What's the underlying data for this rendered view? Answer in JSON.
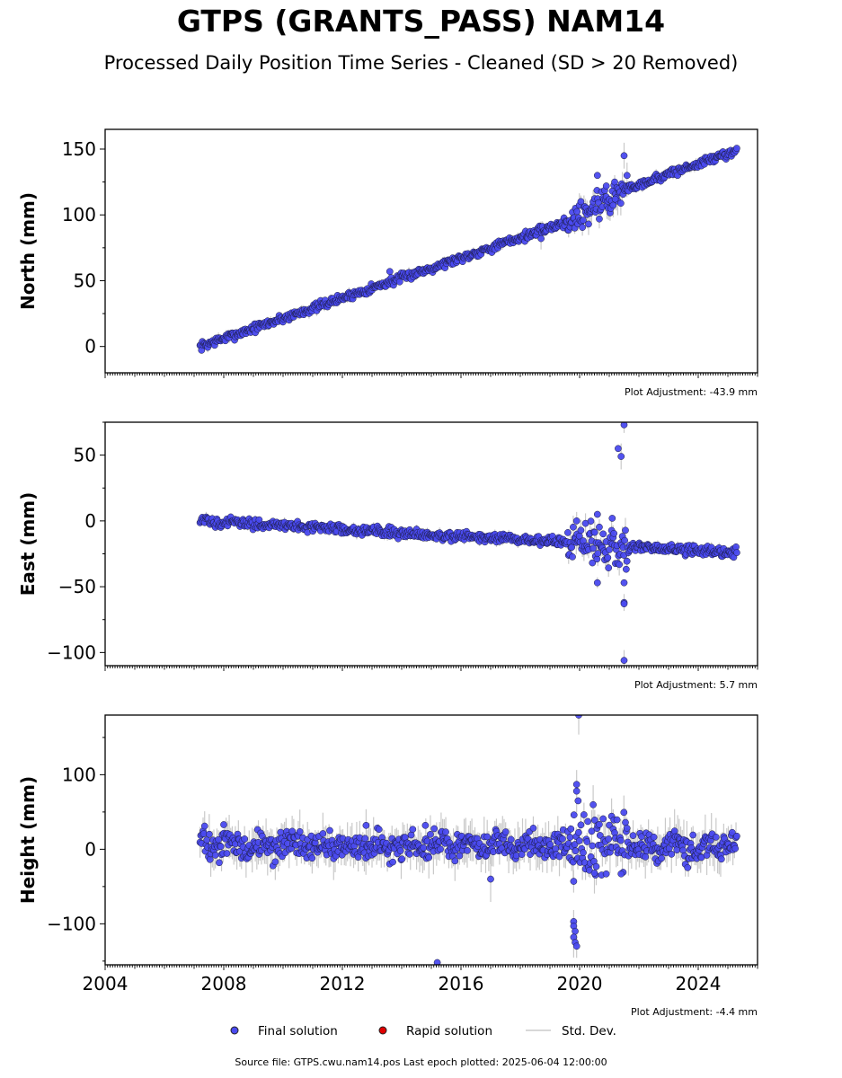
{
  "header": {
    "title": "GTPS (GRANTS_PASS) NAM14",
    "subtitle": "Processed Daily Position Time Series - Cleaned (SD > 20 Removed)"
  },
  "footer": {
    "source": "Source file: GTPS.cwu.nam14.pos  Last epoch plotted: 2025-06-04 12:00:00"
  },
  "legend": {
    "position": "bottom-center",
    "items": [
      {
        "label": "Final solution",
        "color": "#4a4aef"
      },
      {
        "label": "Rapid solution",
        "color": "#e00000"
      },
      {
        "label": "Std. Dev.",
        "color": "#cccccc"
      }
    ]
  },
  "chart_data": [
    {
      "type": "scatter",
      "ylabel": "North (mm)",
      "adjustment": "Plot Adjustment: -43.9 mm",
      "xlim": [
        2004,
        2026
      ],
      "ylim": [
        -20,
        165
      ],
      "yticks": [
        0,
        50,
        100,
        150
      ],
      "xticks": [
        2004,
        2008,
        2012,
        2016,
        2020,
        2024
      ],
      "show_xtick_labels": false,
      "grid": false,
      "series": [
        {
          "color": "#4a4aef",
          "trend": [
            [
              2007.2,
              0
            ],
            [
              2019.6,
              95
            ],
            [
              2021.6,
              120
            ],
            [
              2025.3,
              149
            ]
          ],
          "outliers": [
            [
              2021.5,
              145
            ],
            [
              2020.6,
              130
            ],
            [
              2021.6,
              130
            ],
            [
              2020.9,
              122
            ],
            [
              2018.7,
              82
            ],
            [
              2013.6,
              57
            ],
            [
              2021.2,
              112
            ]
          ]
        }
      ]
    },
    {
      "type": "scatter",
      "ylabel": "East (mm)",
      "adjustment": "Plot Adjustment: 5.7 mm",
      "xlim": [
        2004,
        2026
      ],
      "ylim": [
        -110,
        75
      ],
      "yticks": [
        -100,
        -50,
        0,
        50
      ],
      "xticks": [
        2004,
        2008,
        2012,
        2016,
        2020,
        2024
      ],
      "show_xtick_labels": false,
      "grid": false,
      "series": [
        {
          "color": "#4a4aef",
          "trend": [
            [
              2007.2,
              0
            ],
            [
              2012,
              -6
            ],
            [
              2016,
              -12
            ],
            [
              2019.6,
              -16
            ],
            [
              2021.6,
              -20
            ],
            [
              2025.3,
              -24
            ]
          ],
          "outliers": [
            [
              2021.5,
              73
            ],
            [
              2021.3,
              55
            ],
            [
              2021.4,
              49
            ],
            [
              2020.6,
              5
            ],
            [
              2019.9,
              0
            ],
            [
              2021.1,
              2
            ],
            [
              2020.6,
              -47
            ],
            [
              2021.5,
              -47
            ],
            [
              2021.5,
              -62
            ],
            [
              2021.5,
              -63
            ],
            [
              2021.5,
              -106
            ]
          ]
        }
      ]
    },
    {
      "type": "scatter",
      "ylabel": "Height (mm)",
      "adjustment": "Plot Adjustment: -4.4 mm",
      "xlim": [
        2004,
        2026
      ],
      "ylim": [
        -155,
        180
      ],
      "yticks": [
        -100,
        0,
        100
      ],
      "xticks": [
        2004,
        2008,
        2012,
        2016,
        2020,
        2024
      ],
      "xticklabels": [
        "2004",
        "2008",
        "2012",
        "2016",
        "2020",
        "2024"
      ],
      "show_xtick_labels": true,
      "grid": false,
      "series": [
        {
          "color": "#4a4aef",
          "trend": [
            [
              2007.2,
              5
            ],
            [
              2025.3,
              5
            ]
          ],
          "outliers": [
            [
              2019.97,
              180
            ],
            [
              2019.9,
              87
            ],
            [
              2019.9,
              78
            ],
            [
              2019.95,
              65
            ],
            [
              2019.8,
              -43
            ],
            [
              2019.8,
              -97
            ],
            [
              2019.8,
              -103
            ],
            [
              2019.85,
              -110
            ],
            [
              2019.8,
              -118
            ],
            [
              2019.85,
              -125
            ],
            [
              2019.9,
              -130
            ],
            [
              2015.2,
              -152
            ],
            [
              2017.0,
              -40
            ],
            [
              2008.0,
              33
            ],
            [
              2012.8,
              32
            ],
            [
              2014.8,
              32
            ],
            [
              2020.5,
              -32
            ],
            [
              2021.4,
              -33
            ]
          ]
        }
      ]
    }
  ]
}
